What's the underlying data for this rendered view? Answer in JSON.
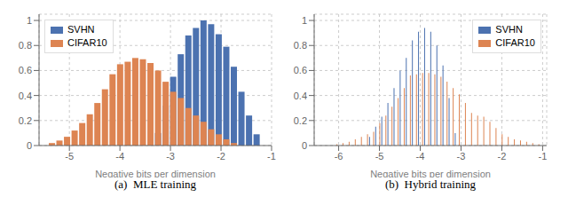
{
  "chart_data": [
    {
      "type": "bar",
      "title": "(a)  MLE training",
      "xlabel": "Negative bits per dimension",
      "xlim": [
        -5.6,
        -1.0
      ],
      "xticks": [
        -5,
        -4,
        -3,
        -2,
        -1
      ],
      "ylim": [
        0,
        1.05
      ],
      "yticks": [
        0,
        0.2,
        0.4,
        0.6,
        0.8,
        1
      ],
      "grid": true,
      "legend": "upper left",
      "series": [
        {
          "name": "SVHN",
          "color": "#4c72b0",
          "x": [
            -3.1,
            -2.95,
            -2.8,
            -2.65,
            -2.5,
            -2.35,
            -2.2,
            -2.05,
            -1.9,
            -1.75,
            -1.6,
            -1.45,
            -3.25,
            -1.3
          ],
          "values": [
            0.32,
            0.55,
            0.73,
            0.88,
            0.94,
            1.0,
            0.97,
            0.89,
            0.79,
            0.63,
            0.43,
            0.24,
            0.1,
            0.09
          ]
        },
        {
          "name": "CIFAR10",
          "color": "#dd8452",
          "x": [
            -5.35,
            -5.2,
            -5.05,
            -4.9,
            -4.75,
            -4.6,
            -4.45,
            -4.3,
            -4.15,
            -4.0,
            -3.85,
            -3.7,
            -3.55,
            -3.4,
            -3.25,
            -3.1,
            -2.95,
            -2.8,
            -2.65,
            -2.5,
            -2.35,
            -2.2,
            -2.05,
            -1.9,
            -1.75
          ],
          "values": [
            0.02,
            0.04,
            0.07,
            0.12,
            0.18,
            0.25,
            0.34,
            0.45,
            0.57,
            0.65,
            0.67,
            0.7,
            0.69,
            0.66,
            0.6,
            0.51,
            0.43,
            0.38,
            0.3,
            0.24,
            0.19,
            0.13,
            0.09,
            0.05,
            0.02
          ]
        }
      ]
    },
    {
      "type": "bar",
      "title": "(b)  Hybrid training",
      "xlabel": "Negative bits per dimension",
      "xlim": [
        -6.6,
        -0.9
      ],
      "xticks": [
        -6,
        -5,
        -4,
        -3,
        -2,
        -1
      ],
      "ylim": [
        0,
        1.05
      ],
      "yticks": [
        0,
        0.2,
        0.4,
        0.6,
        0.8,
        1
      ],
      "grid": true,
      "legend": "upper right",
      "series": [
        {
          "name": "SVHN",
          "color": "#4c72b0",
          "x": [
            -5.1,
            -4.95,
            -4.8,
            -4.65,
            -4.5,
            -4.35,
            -4.2,
            -4.05,
            -3.9,
            -3.75,
            -3.6,
            -3.45,
            -3.3,
            -3.15,
            -5.25
          ],
          "values": [
            0.15,
            0.23,
            0.34,
            0.46,
            0.6,
            0.7,
            0.84,
            0.91,
            0.94,
            0.91,
            0.8,
            0.64,
            0.38,
            0.1,
            0.07
          ]
        },
        {
          "name": "CIFAR10",
          "color": "#dd8452",
          "x": [
            -6.05,
            -5.9,
            -5.75,
            -5.6,
            -5.45,
            -5.3,
            -5.15,
            -5.0,
            -4.85,
            -4.7,
            -4.55,
            -4.4,
            -4.25,
            -4.1,
            -3.95,
            -3.8,
            -3.65,
            -3.5,
            -3.35,
            -3.2,
            -3.05,
            -2.9,
            -2.75,
            -2.6,
            -2.45,
            -2.3,
            -2.15,
            -2.0,
            -1.85,
            -1.7,
            -1.55,
            -1.4,
            -1.25,
            -1.1
          ],
          "values": [
            0.01,
            0.02,
            0.03,
            0.05,
            0.07,
            0.09,
            0.11,
            0.18,
            0.24,
            0.31,
            0.38,
            0.46,
            0.56,
            0.57,
            0.58,
            0.58,
            0.57,
            0.55,
            0.51,
            0.46,
            0.41,
            0.34,
            0.26,
            0.24,
            0.23,
            0.19,
            0.14,
            0.09,
            0.07,
            0.05,
            0.04,
            0.03,
            0.02,
            0.01
          ]
        }
      ]
    }
  ]
}
